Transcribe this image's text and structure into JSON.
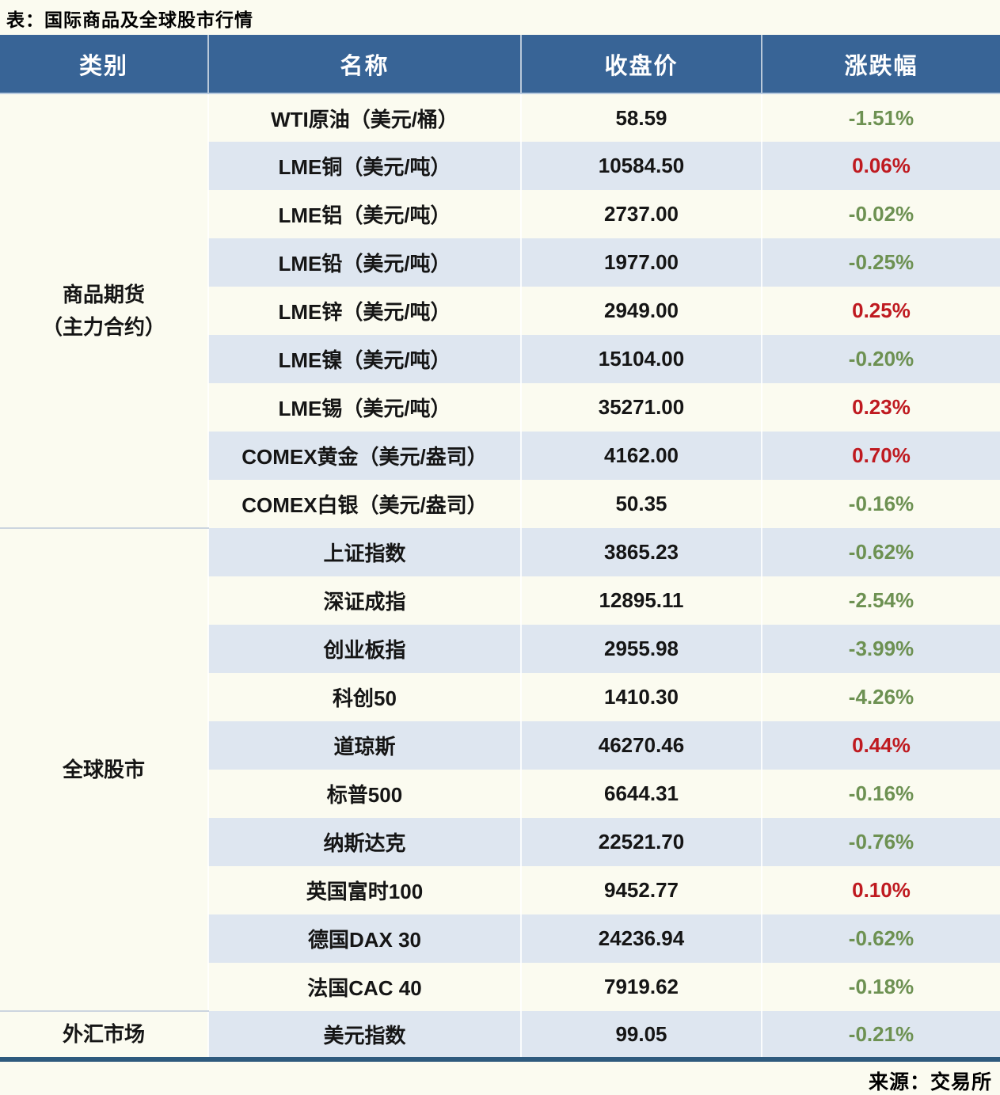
{
  "title": "表：国际商品及全球股市行情",
  "source": "来源：交易所",
  "colors": {
    "page_bg": "#fbfbf0",
    "header_bg": "#386496",
    "stripe_bg": "#dee6f0",
    "up_red": "#bf1a20",
    "down_green": "#6d9152",
    "bottom_line": "#2e5a7d"
  },
  "chart_data": {
    "type": "table",
    "title": "国际商品及全球股市行情",
    "columns": [
      "类别",
      "名称",
      "收盘价",
      "涨跌幅"
    ],
    "groups": [
      {
        "category": "商品期货\n（主力合约）",
        "rows": [
          {
            "name": "WTI原油（美元/桶）",
            "close": "58.59",
            "change": "-1.51%"
          },
          {
            "name": "LME铜（美元/吨）",
            "close": "10584.50",
            "change": "0.06%"
          },
          {
            "name": "LME铝（美元/吨）",
            "close": "2737.00",
            "change": "-0.02%"
          },
          {
            "name": "LME铅（美元/吨）",
            "close": "1977.00",
            "change": "-0.25%"
          },
          {
            "name": "LME锌（美元/吨）",
            "close": "2949.00",
            "change": "0.25%"
          },
          {
            "name": "LME镍（美元/吨）",
            "close": "15104.00",
            "change": "-0.20%"
          },
          {
            "name": "LME锡（美元/吨）",
            "close": "35271.00",
            "change": "0.23%"
          },
          {
            "name": "COMEX黄金（美元/盎司）",
            "close": "4162.00",
            "change": "0.70%"
          },
          {
            "name": "COMEX白银（美元/盎司）",
            "close": "50.35",
            "change": "-0.16%"
          }
        ]
      },
      {
        "category": "全球股市",
        "rows": [
          {
            "name": "上证指数",
            "close": "3865.23",
            "change": "-0.62%"
          },
          {
            "name": "深证成指",
            "close": "12895.11",
            "change": "-2.54%"
          },
          {
            "name": "创业板指",
            "close": "2955.98",
            "change": "-3.99%"
          },
          {
            "name": "科创50",
            "close": "1410.30",
            "change": "-4.26%"
          },
          {
            "name": "道琼斯",
            "close": "46270.46",
            "change": "0.44%"
          },
          {
            "name": "标普500",
            "close": "6644.31",
            "change": "-0.16%"
          },
          {
            "name": "纳斯达克",
            "close": "22521.70",
            "change": "-0.76%"
          },
          {
            "name": "英国富时100",
            "close": "9452.77",
            "change": "0.10%"
          },
          {
            "name": "德国DAX 30",
            "close": "24236.94",
            "change": "-0.62%"
          },
          {
            "name": "法国CAC 40",
            "close": "7919.62",
            "change": "-0.18%"
          }
        ]
      },
      {
        "category": "外汇市场",
        "rows": [
          {
            "name": "美元指数",
            "close": "99.05",
            "change": "-0.21%"
          }
        ]
      }
    ]
  }
}
